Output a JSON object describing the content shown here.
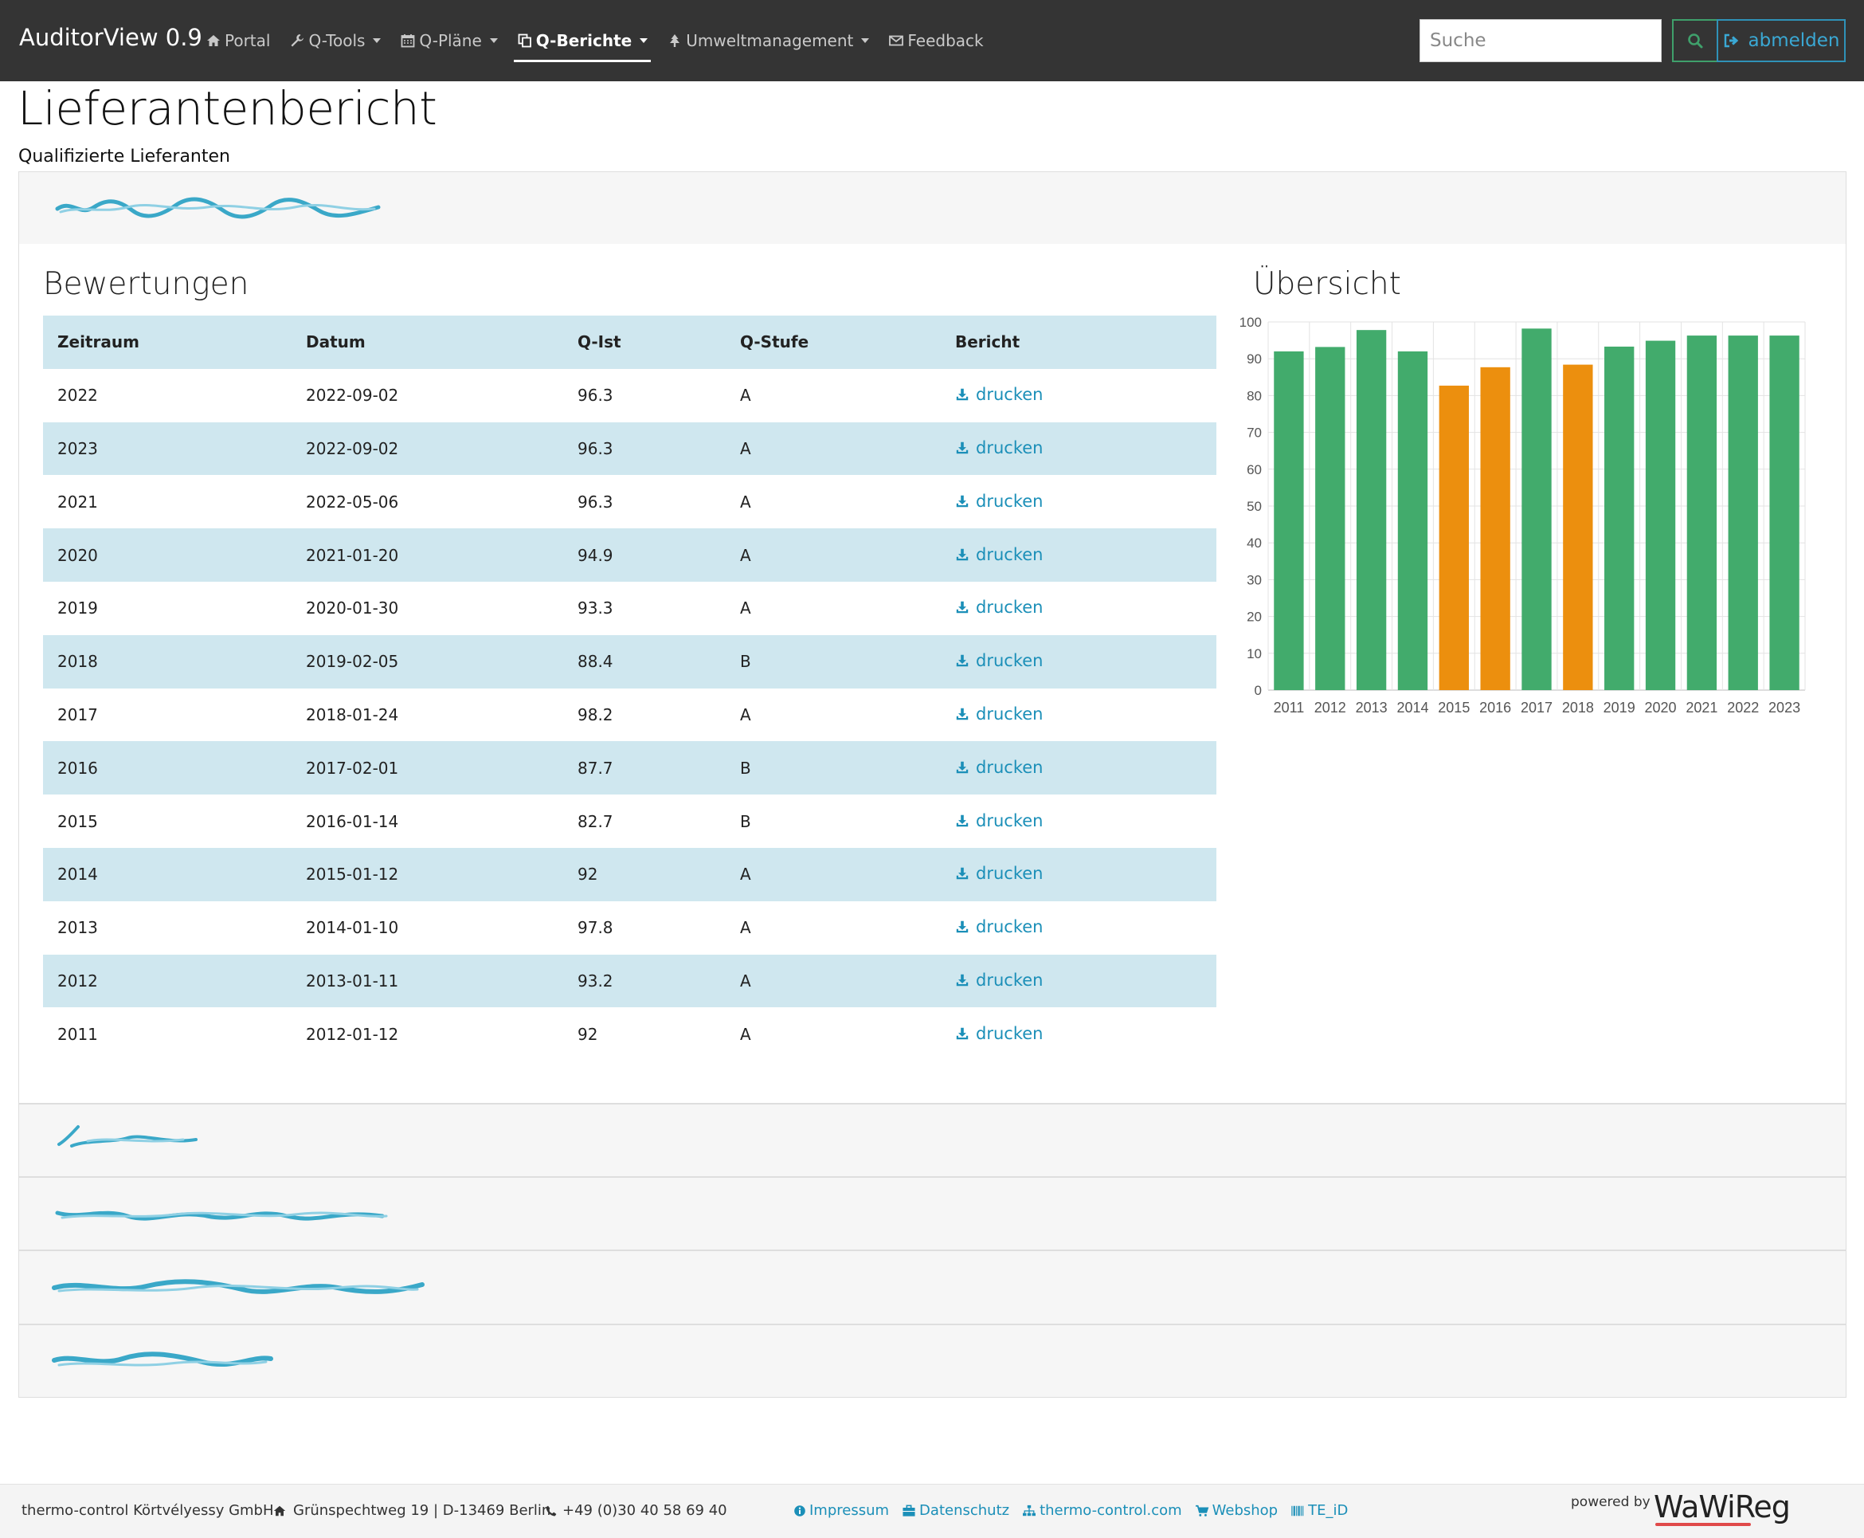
{
  "app": {
    "brand": "AuditorView 0.9"
  },
  "nav": {
    "items": [
      {
        "label": "Portal",
        "icon": "home-icon",
        "dropdown": false,
        "active": false
      },
      {
        "label": "Q-Tools",
        "icon": "wrench-icon",
        "dropdown": true,
        "active": false
      },
      {
        "label": "Q-Pläne",
        "icon": "calendar-icon",
        "dropdown": true,
        "active": false
      },
      {
        "label": "Q-Berichte",
        "icon": "copy-icon",
        "dropdown": true,
        "active": true
      },
      {
        "label": "Umweltmanagement",
        "icon": "tree-icon",
        "dropdown": true,
        "active": false
      },
      {
        "label": "Feedback",
        "icon": "envelope-icon",
        "dropdown": false,
        "active": false
      }
    ],
    "search_placeholder": "Suche",
    "logout_label": "abmelden"
  },
  "page": {
    "title": "Lieferantenbericht",
    "subtitle": "Qualifizierte Lieferanten"
  },
  "sections": {
    "ratings_title": "Bewertungen",
    "overview_title": "Übersicht"
  },
  "table": {
    "headers": [
      "Zeitraum",
      "Datum",
      "Q-Ist",
      "Q-Stufe",
      "Bericht"
    ],
    "link_label": "drucken",
    "rows": [
      {
        "period": "2022",
        "date": "2022-09-02",
        "q_ist": "96.3",
        "q_stufe": "A"
      },
      {
        "period": "2023",
        "date": "2022-09-02",
        "q_ist": "96.3",
        "q_stufe": "A"
      },
      {
        "period": "2021",
        "date": "2022-05-06",
        "q_ist": "96.3",
        "q_stufe": "A"
      },
      {
        "period": "2020",
        "date": "2021-01-20",
        "q_ist": "94.9",
        "q_stufe": "A"
      },
      {
        "period": "2019",
        "date": "2020-01-30",
        "q_ist": "93.3",
        "q_stufe": "A"
      },
      {
        "period": "2018",
        "date": "2019-02-05",
        "q_ist": "88.4",
        "q_stufe": "B"
      },
      {
        "period": "2017",
        "date": "2018-01-24",
        "q_ist": "98.2",
        "q_stufe": "A"
      },
      {
        "period": "2016",
        "date": "2017-02-01",
        "q_ist": "87.7",
        "q_stufe": "B"
      },
      {
        "period": "2015",
        "date": "2016-01-14",
        "q_ist": "82.7",
        "q_stufe": "B"
      },
      {
        "period": "2014",
        "date": "2015-01-12",
        "q_ist": "92",
        "q_stufe": "A"
      },
      {
        "period": "2013",
        "date": "2014-01-10",
        "q_ist": "97.8",
        "q_stufe": "A"
      },
      {
        "period": "2012",
        "date": "2013-01-11",
        "q_ist": "93.2",
        "q_stufe": "A"
      },
      {
        "period": "2011",
        "date": "2012-01-12",
        "q_ist": "92",
        "q_stufe": "A"
      }
    ]
  },
  "chart_data": {
    "type": "bar",
    "categories": [
      "2011",
      "2012",
      "2013",
      "2014",
      "2015",
      "2016",
      "2017",
      "2018",
      "2019",
      "2020",
      "2021",
      "2022",
      "2023"
    ],
    "values": [
      92,
      93.2,
      97.8,
      92,
      82.7,
      87.7,
      98.2,
      88.4,
      93.3,
      94.9,
      96.3,
      96.3,
      96.3
    ],
    "grades": [
      "A",
      "A",
      "A",
      "A",
      "B",
      "B",
      "A",
      "B",
      "A",
      "A",
      "A",
      "A",
      "A"
    ],
    "grade_colors": {
      "A": "#42ab6c",
      "B": "#ec8f0e"
    },
    "ylim": [
      0,
      100
    ],
    "yticks": [
      0,
      10,
      20,
      30,
      40,
      50,
      60,
      70,
      80,
      90,
      100
    ],
    "grid": true,
    "title": "",
    "xlabel": "",
    "ylabel": ""
  },
  "footer": {
    "company": "thermo-control Körtvélyessy GmbH",
    "address": "Grünspechtweg 19 | D-13469 Berlin",
    "phone": "+49 (0)30 40 58 69 40",
    "links": [
      {
        "label": "Impressum",
        "icon": "info-icon"
      },
      {
        "label": "Datenschutz",
        "icon": "briefcase-icon"
      },
      {
        "label": "thermo-control.com",
        "icon": "sitemap-icon"
      },
      {
        "label": "Webshop",
        "icon": "cart-icon"
      },
      {
        "label": "TE_iD",
        "icon": "barcode-icon"
      }
    ],
    "powered_by": "powered by",
    "logo_text": "WaWiReg"
  },
  "colors": {
    "navbar": "#343434",
    "accent_link": "#1b8fb8",
    "table_stripe": "#cfe7ef",
    "search_button": "#3fa06b"
  }
}
